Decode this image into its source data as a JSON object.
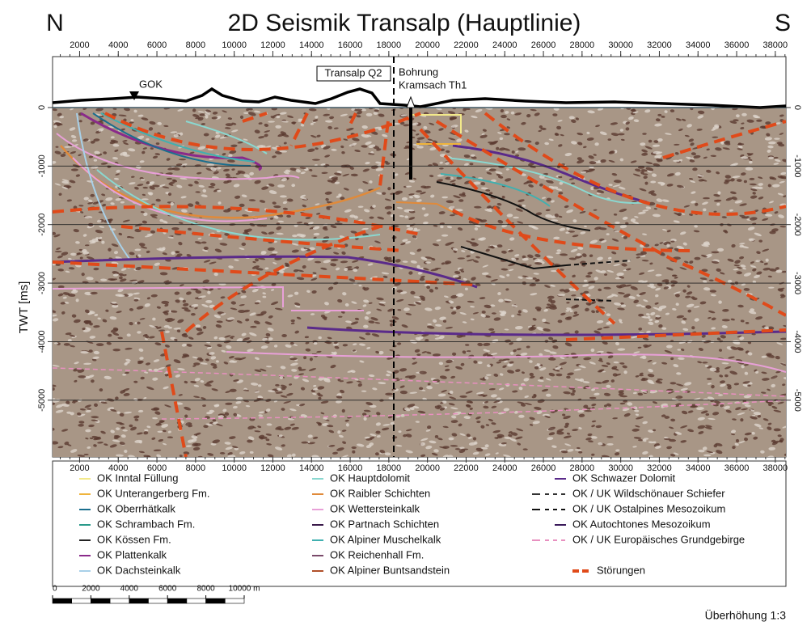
{
  "chart_data": {
    "type": "section",
    "title": "2D Seismik Transalp (Hauptlinie)",
    "left_label": "N",
    "right_label": "S",
    "ylabel": "TWT [ms]",
    "xlim": [
      600,
      38550
    ],
    "xticks": [
      2000,
      4000,
      6000,
      8000,
      10000,
      12000,
      14000,
      16000,
      18000,
      20000,
      22000,
      24000,
      26000,
      28000,
      30000,
      32000,
      34000,
      36000,
      38000
    ],
    "ylim": [
      -5970,
      870
    ],
    "yticks": [
      0,
      -1000,
      -2000,
      -3000,
      -4000,
      -5000
    ],
    "annotations": {
      "surface": "GOK",
      "crossing": "Transalp Q2",
      "well_1": "Bohrung",
      "well_2": "Kramsach Th1"
    },
    "legend": [
      [
        {
          "name": "OK Inntal Füllung",
          "color": "#f3e98a",
          "style": "solid"
        },
        {
          "name": "OK Unterangerberg Fm.",
          "color": "#efb43c",
          "style": "solid"
        },
        {
          "name": "OK Oberrhätkalk",
          "color": "#1a6e8e",
          "style": "solid"
        },
        {
          "name": "OK Schrambach Fm.",
          "color": "#2a9a8a",
          "style": "solid"
        },
        {
          "name": "OK Kössen Fm.",
          "color": "#222222",
          "style": "solid"
        },
        {
          "name": "OK Plattenkalk",
          "color": "#8a2a8a",
          "style": "solid"
        },
        {
          "name": "OK Dachsteinkalk",
          "color": "#a8d0e8",
          "style": "solid"
        }
      ],
      [
        {
          "name": "OK Hauptdolomit",
          "color": "#8ad8d0",
          "style": "solid"
        },
        {
          "name": "OK Raibler Schichten",
          "color": "#e08a3a",
          "style": "solid"
        },
        {
          "name": "OK Wettersteinkalk",
          "color": "#e8a0d8",
          "style": "solid"
        },
        {
          "name": "OK Partnach Schichten",
          "color": "#3a1a4a",
          "style": "solid"
        },
        {
          "name": "OK Alpiner Muschelkalk",
          "color": "#40b0b0",
          "style": "solid"
        },
        {
          "name": "OK Reichenhall Fm.",
          "color": "#7a4a6a",
          "style": "solid"
        },
        {
          "name": "OK Alpiner Buntsandstein",
          "color": "#b0502a",
          "style": "solid"
        }
      ],
      [
        {
          "name": "OK Schwazer Dolomit",
          "color": "#5a2a8a",
          "style": "solid"
        },
        {
          "name": "OK / UK Wildschönauer Schiefer",
          "color": "#333333",
          "style": "solid-dashed"
        },
        {
          "name": "OK / UK Ostalpines Mesozoikum",
          "color": "#111111",
          "style": "solid-dashed"
        },
        {
          "name": "OK Autochtones Mesozoikum",
          "color": "#3a1a5a",
          "style": "solid"
        },
        {
          "name": "OK / UK Europäisches Grundgebirge",
          "color": "#e890c0",
          "style": "solid-dashed"
        },
        {
          "name": "Störungen",
          "color": "#e04a1a",
          "style": "fault"
        }
      ]
    ],
    "scale_bar": {
      "ticks": [
        0,
        2000,
        4000,
        6000,
        8000,
        {
          "value": 10000,
          "label": "10000 m"
        }
      ]
    },
    "exaggeration": "Überhöhung 1:3"
  }
}
